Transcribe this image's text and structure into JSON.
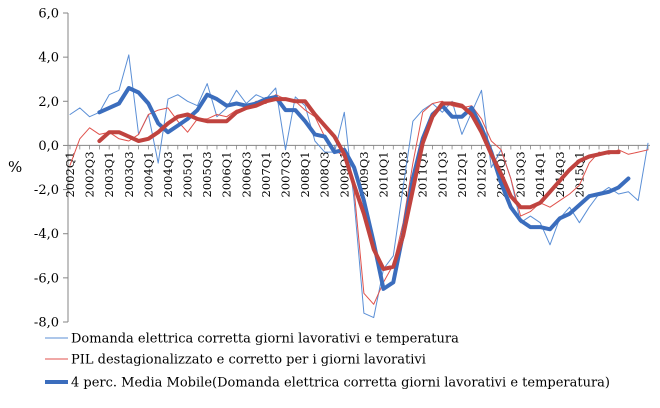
{
  "chart_data": {
    "type": "line",
    "title": "",
    "xlabel": "",
    "ylabel": "%",
    "ylim": [
      -8,
      6
    ],
    "yticks": [
      6,
      4,
      2,
      0,
      -2,
      -4,
      -6,
      -8
    ],
    "ytick_labels": [
      "6,0",
      "4,0",
      "2,0",
      "0,0",
      "-2,0",
      "-4,0",
      "-6,0",
      "-8,0"
    ],
    "grid": "none",
    "legend_position": "bottom",
    "x_labels": [
      "2002Q1",
      "2002Q3",
      "2003Q1",
      "2003Q3",
      "2004Q1",
      "2004Q3",
      "2005Q1",
      "2005Q3",
      "2006Q1",
      "2006Q3",
      "2007Q1",
      "2007Q3",
      "2008Q1",
      "2008Q3",
      "2009Q1",
      "2009Q3",
      "2010Q1",
      "2010Q3",
      "2011Q1",
      "2011Q3",
      "2012Q1",
      "2012Q3",
      "2013Q1",
      "2013Q3",
      "2014Q1",
      "2014Q3",
      "2015Q1"
    ],
    "series": [
      {
        "name": "Domanda elettrica corretta giorni lavorativi e temperatura",
        "color": "#5b8fd6",
        "style": "thin",
        "start_index": 0,
        "values": [
          1.4,
          1.7,
          1.3,
          1.5,
          2.3,
          2.5,
          4.1,
          0.5,
          1.4,
          -0.8,
          2.1,
          2.3,
          2.0,
          1.8,
          2.8,
          1.3,
          1.7,
          2.5,
          1.9,
          2.3,
          2.1,
          2.6,
          -0.2,
          2.2,
          1.8,
          0.2,
          -0.3,
          -0.3,
          1.5,
          -2.5,
          -7.6,
          -7.8,
          -5.6,
          -5.0,
          -1.9,
          1.1,
          1.6,
          1.9,
          1.5,
          2.0,
          0.5,
          1.5,
          2.5,
          -1.0,
          -0.2,
          -1.5,
          -3.5,
          -3.2,
          -3.5,
          -4.5,
          -3.3,
          -2.8,
          -3.5,
          -2.8,
          -2.2,
          -1.9,
          -2.2,
          -2.1,
          -2.5,
          0.1
        ]
      },
      {
        "name": "PIL destagionalizzato e corretto per i giorni lavorativi",
        "color": "#e0524c",
        "style": "thin",
        "start_index": 0,
        "values": [
          -0.9,
          0.3,
          0.8,
          0.5,
          0.6,
          0.3,
          0.2,
          0.5,
          1.4,
          1.6,
          1.7,
          1.1,
          0.6,
          1.2,
          1.2,
          1.4,
          1.3,
          1.6,
          1.7,
          2.0,
          1.9,
          2.3,
          2.1,
          2.0,
          1.6,
          1.3,
          0.4,
          -0.2,
          -0.5,
          -2.0,
          -6.7,
          -7.2,
          -6.2,
          -5.4,
          -3.5,
          -0.8,
          1.5,
          1.9,
          2.0,
          1.8,
          1.7,
          1.8,
          1.2,
          0.2,
          -0.2,
          -1.5,
          -3.2,
          -3.0,
          -2.6,
          -2.8,
          -2.5,
          -2.2,
          -1.8,
          -0.8,
          -0.3,
          -0.4,
          -0.2,
          -0.4,
          -0.3,
          -0.2
        ]
      },
      {
        "name": "4 perc. Media Mobile(Domanda elettrica corretta giorni lavorativi e temperatura)",
        "color": "#3b6dbd",
        "style": "thick",
        "start_index": 3,
        "values": [
          1.5,
          1.7,
          1.9,
          2.6,
          2.4,
          1.9,
          1.0,
          0.6,
          0.9,
          1.2,
          1.6,
          2.3,
          2.1,
          1.8,
          1.9,
          1.8,
          1.9,
          2.1,
          2.2,
          1.6,
          1.6,
          1.1,
          0.5,
          0.4,
          -0.3,
          -0.2,
          -1.0,
          -2.5,
          -4.4,
          -6.5,
          -6.2,
          -4.0,
          -1.5,
          0.3,
          1.4,
          1.8,
          1.3,
          1.3,
          1.7,
          0.8,
          -0.3,
          -1.7,
          -2.8,
          -3.4,
          -3.7,
          -3.7,
          -3.8,
          -3.3,
          -3.1,
          -2.7,
          -2.3,
          -2.2,
          -2.1,
          -1.9,
          -1.5
        ]
      },
      {
        "name": "",
        "color": "#c0433f",
        "style": "thick",
        "start_index": 3,
        "values": [
          0.2,
          0.6,
          0.6,
          0.4,
          0.2,
          0.3,
          0.6,
          1.0,
          1.3,
          1.4,
          1.2,
          1.1,
          1.1,
          1.1,
          1.5,
          1.7,
          1.8,
          2.0,
          2.1,
          2.1,
          2.0,
          2.0,
          1.4,
          0.9,
          0.4,
          -0.4,
          -1.8,
          -3.1,
          -4.7,
          -5.6,
          -5.5,
          -4.1,
          -2.0,
          0.1,
          1.3,
          1.9,
          1.9,
          1.8,
          1.4,
          0.6,
          -0.4,
          -1.3,
          -2.3,
          -2.8,
          -2.8,
          -2.6,
          -2.1,
          -1.6,
          -1.1,
          -0.7,
          -0.5,
          -0.4,
          -0.3,
          -0.3
        ]
      }
    ]
  }
}
